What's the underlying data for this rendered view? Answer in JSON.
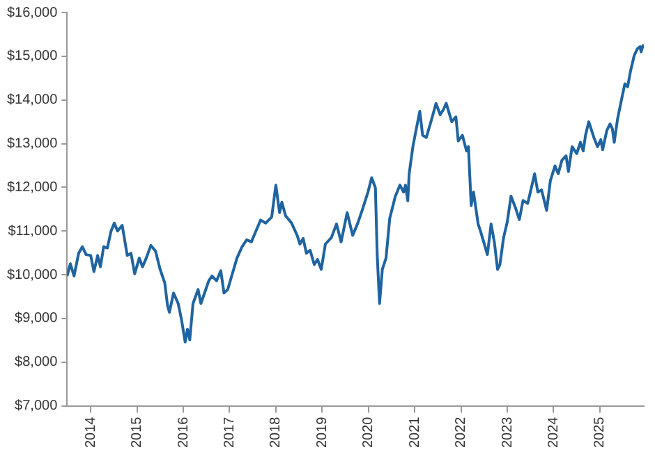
{
  "chart_data": {
    "type": "line",
    "color": "#1f64a0",
    "xlim": [
      2013.49,
      2025.95
    ],
    "xticks": [
      2014,
      2015,
      2016,
      2017,
      2018,
      2019,
      2020,
      2021,
      2022,
      2023,
      2024,
      2025
    ],
    "ylim": [
      7000,
      16000
    ],
    "yticks": [
      {
        "value": 7000,
        "label": "$7,000"
      },
      {
        "value": 8000,
        "label": "$8,000"
      },
      {
        "value": 9000,
        "label": "$9,000"
      },
      {
        "value": 10000,
        "label": "$10,000"
      },
      {
        "value": 11000,
        "label": "$11,000"
      },
      {
        "value": 12000,
        "label": "$12,000"
      },
      {
        "value": 13000,
        "label": "$13,000"
      },
      {
        "value": 14000,
        "label": "$14,000"
      },
      {
        "value": 15000,
        "label": "$15,000"
      },
      {
        "value": 16000,
        "label": "$16,000"
      }
    ],
    "grid": false,
    "legend": false,
    "marker": "none",
    "line_style": "solid",
    "x": [
      2013.49,
      2013.56,
      2013.64,
      2013.74,
      2013.82,
      2013.9,
      2014.0,
      2014.07,
      2014.15,
      2014.21,
      2014.28,
      2014.36,
      2014.44,
      2014.51,
      2014.58,
      2014.68,
      2014.79,
      2014.87,
      2014.95,
      2015.05,
      2015.12,
      2015.2,
      2015.3,
      2015.4,
      2015.5,
      2015.6,
      2015.66,
      2015.7,
      2015.79,
      2015.89,
      2015.96,
      2016.04,
      2016.09,
      2016.14,
      2016.21,
      2016.32,
      2016.38,
      2016.45,
      2016.55,
      2016.62,
      2016.72,
      2016.81,
      2016.88,
      2016.96,
      2017.06,
      2017.16,
      2017.27,
      2017.37,
      2017.47,
      2017.57,
      2017.67,
      2017.78,
      2017.91,
      2018.0,
      2018.08,
      2018.13,
      2018.21,
      2018.34,
      2018.46,
      2018.52,
      2018.59,
      2018.66,
      2018.74,
      2018.83,
      2018.9,
      2018.98,
      2019.07,
      2019.2,
      2019.31,
      2019.41,
      2019.54,
      2019.66,
      2019.77,
      2019.87,
      2019.99,
      2020.07,
      2020.15,
      2020.19,
      2020.24,
      2020.3,
      2020.38,
      2020.46,
      2020.58,
      2020.68,
      2020.76,
      2020.8,
      2020.85,
      2020.88,
      2020.96,
      2021.04,
      2021.11,
      2021.17,
      2021.25,
      2021.35,
      2021.46,
      2021.55,
      2021.62,
      2021.68,
      2021.8,
      2021.89,
      2021.94,
      2022.03,
      2022.12,
      2022.16,
      2022.22,
      2022.27,
      2022.37,
      2022.42,
      2022.49,
      2022.57,
      2022.65,
      2022.72,
      2022.79,
      2022.84,
      2022.92,
      2023.0,
      2023.08,
      2023.18,
      2023.26,
      2023.34,
      2023.44,
      2023.52,
      2023.59,
      2023.66,
      2023.74,
      2023.85,
      2023.93,
      2024.03,
      2024.1,
      2024.18,
      2024.27,
      2024.32,
      2024.4,
      2024.5,
      2024.58,
      2024.64,
      2024.69,
      2024.76,
      2024.87,
      2024.95,
      2025.02,
      2025.06,
      2025.15,
      2025.22,
      2025.27,
      2025.31,
      2025.38,
      2025.46,
      2025.54,
      2025.6,
      2025.66,
      2025.74,
      2025.81,
      2025.87,
      2025.89,
      2025.94
    ],
    "values": [
      9970,
      10250,
      9970,
      10490,
      10640,
      10460,
      10440,
      10070,
      10440,
      10180,
      10640,
      10610,
      11000,
      11180,
      11000,
      11130,
      10440,
      10490,
      10020,
      10380,
      10180,
      10380,
      10670,
      10540,
      10120,
      9810,
      9290,
      9140,
      9580,
      9340,
      8980,
      8460,
      8750,
      8510,
      9340,
      9660,
      9340,
      9550,
      9860,
      9970,
      9860,
      10090,
      9580,
      9660,
      10020,
      10380,
      10640,
      10800,
      10750,
      11000,
      11250,
      11180,
      11320,
      12050,
      11420,
      11660,
      11350,
      11180,
      10900,
      10700,
      10830,
      10490,
      10560,
      10230,
      10350,
      10120,
      10700,
      10850,
      11160,
      10750,
      11420,
      10900,
      11180,
      11490,
      11890,
      12220,
      11990,
      10440,
      9340,
      10120,
      10380,
      11290,
      11790,
      12050,
      11890,
      12050,
      11690,
      12310,
      12930,
      13370,
      13740,
      13190,
      13140,
      13500,
      13920,
      13660,
      13780,
      13920,
      13500,
      13610,
      13060,
      13190,
      12830,
      12930,
      11580,
      11890,
      11160,
      11000,
      10750,
      10460,
      11160,
      10750,
      10120,
      10230,
      10850,
      11210,
      11800,
      11520,
      11260,
      11700,
      11630,
      11990,
      12310,
      11890,
      11940,
      11470,
      12150,
      12490,
      12310,
      12620,
      12720,
      12360,
      12930,
      12770,
      13030,
      12830,
      13190,
      13500,
      13140,
      12930,
      13090,
      12860,
      13300,
      13450,
      13340,
      13030,
      13550,
      13970,
      14370,
      14300,
      14650,
      15010,
      15170,
      15220,
      15100,
      15270
    ]
  }
}
